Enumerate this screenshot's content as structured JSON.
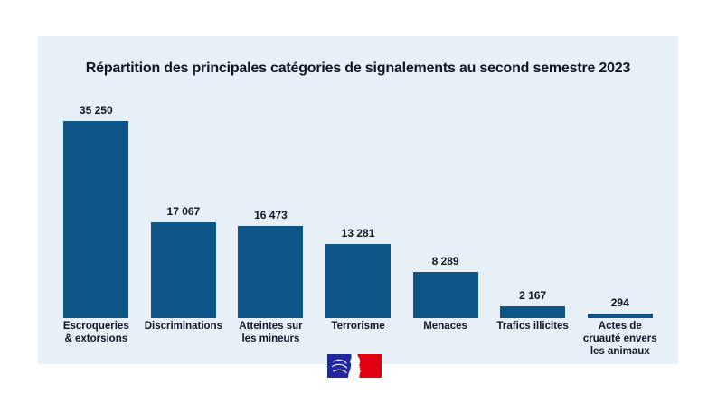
{
  "panel": {
    "background": "#e7f0f7",
    "text_color": "#0f1524"
  },
  "chart_data": {
    "type": "bar",
    "title": "Répartition des principales catégories de signalements au second semestre 2023",
    "categories": [
      "Escroqueries & extorsions",
      "Discriminations",
      "Atteintes sur les mineurs",
      "Terrorisme",
      "Menaces",
      "Trafics illicites",
      "Actes de cruauté envers les animaux"
    ],
    "category_lines": [
      [
        "Escroqueries",
        "& extorsions"
      ],
      [
        "Discriminations"
      ],
      [
        "Atteintes sur",
        "les mineurs"
      ],
      [
        "Terrorisme"
      ],
      [
        "Menaces"
      ],
      [
        "Trafics illicites"
      ],
      [
        "Actes de",
        "cruauté envers",
        "les animaux"
      ]
    ],
    "values": [
      35250,
      17067,
      16473,
      13281,
      8289,
      2167,
      294
    ],
    "value_labels": [
      "35 250",
      "17 067",
      "16 473",
      "13 281",
      "8 289",
      "2 167",
      "294"
    ],
    "bar_color": "#0d5586",
    "background": "#e7f0f7",
    "xlabel": "",
    "ylabel": "",
    "ylim": [
      0,
      35250
    ],
    "grid": false,
    "legend": null,
    "value_label_position": "above-bar"
  },
  "footer": {
    "logo_name": "french-republic-marianne-logo",
    "logo_colors": {
      "blue": "#23279c",
      "white": "#ffffff",
      "red": "#e1000f"
    }
  }
}
